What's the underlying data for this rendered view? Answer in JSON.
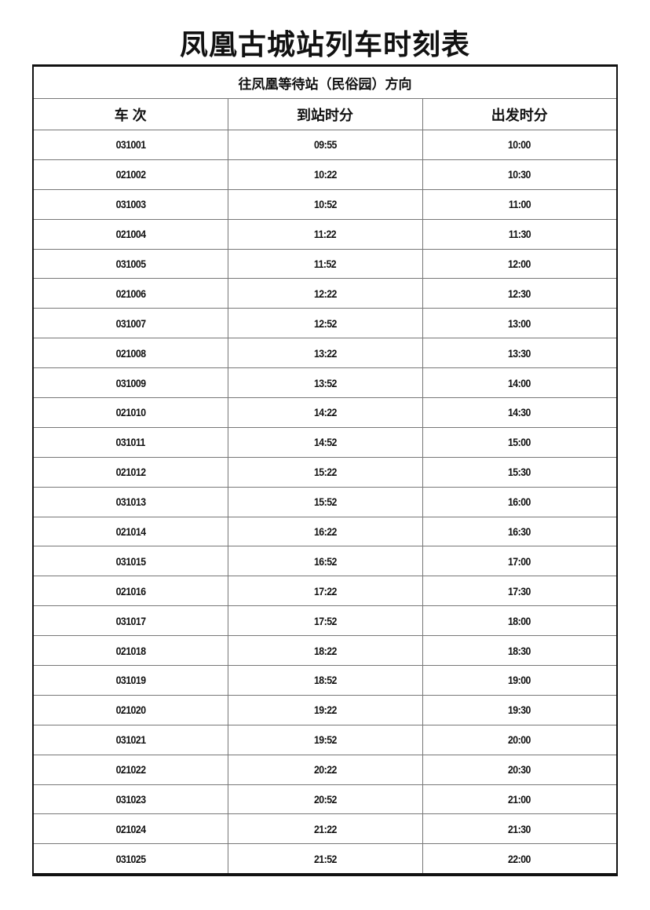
{
  "title": "凤凰古城站列车时刻表",
  "direction": "往凤凰等待站（民俗园）方向",
  "columns": [
    "车 次",
    "到站时分",
    "出发时分"
  ],
  "rows": [
    [
      "031001",
      "09:55",
      "10:00"
    ],
    [
      "021002",
      "10:22",
      "10:30"
    ],
    [
      "031003",
      "10:52",
      "11:00"
    ],
    [
      "021004",
      "11:22",
      "11:30"
    ],
    [
      "031005",
      "11:52",
      "12:00"
    ],
    [
      "021006",
      "12:22",
      "12:30"
    ],
    [
      "031007",
      "12:52",
      "13:00"
    ],
    [
      "021008",
      "13:22",
      "13:30"
    ],
    [
      "031009",
      "13:52",
      "14:00"
    ],
    [
      "021010",
      "14:22",
      "14:30"
    ],
    [
      "031011",
      "14:52",
      "15:00"
    ],
    [
      "021012",
      "15:22",
      "15:30"
    ],
    [
      "031013",
      "15:52",
      "16:00"
    ],
    [
      "021014",
      "16:22",
      "16:30"
    ],
    [
      "031015",
      "16:52",
      "17:00"
    ],
    [
      "021016",
      "17:22",
      "17:30"
    ],
    [
      "031017",
      "17:52",
      "18:00"
    ],
    [
      "021018",
      "18:22",
      "18:30"
    ],
    [
      "031019",
      "18:52",
      "19:00"
    ],
    [
      "021020",
      "19:22",
      "19:30"
    ],
    [
      "031021",
      "19:52",
      "20:00"
    ],
    [
      "021022",
      "20:22",
      "20:30"
    ],
    [
      "031023",
      "20:52",
      "21:00"
    ],
    [
      "021024",
      "21:22",
      "21:30"
    ],
    [
      "031025",
      "21:52",
      "22:00"
    ]
  ]
}
